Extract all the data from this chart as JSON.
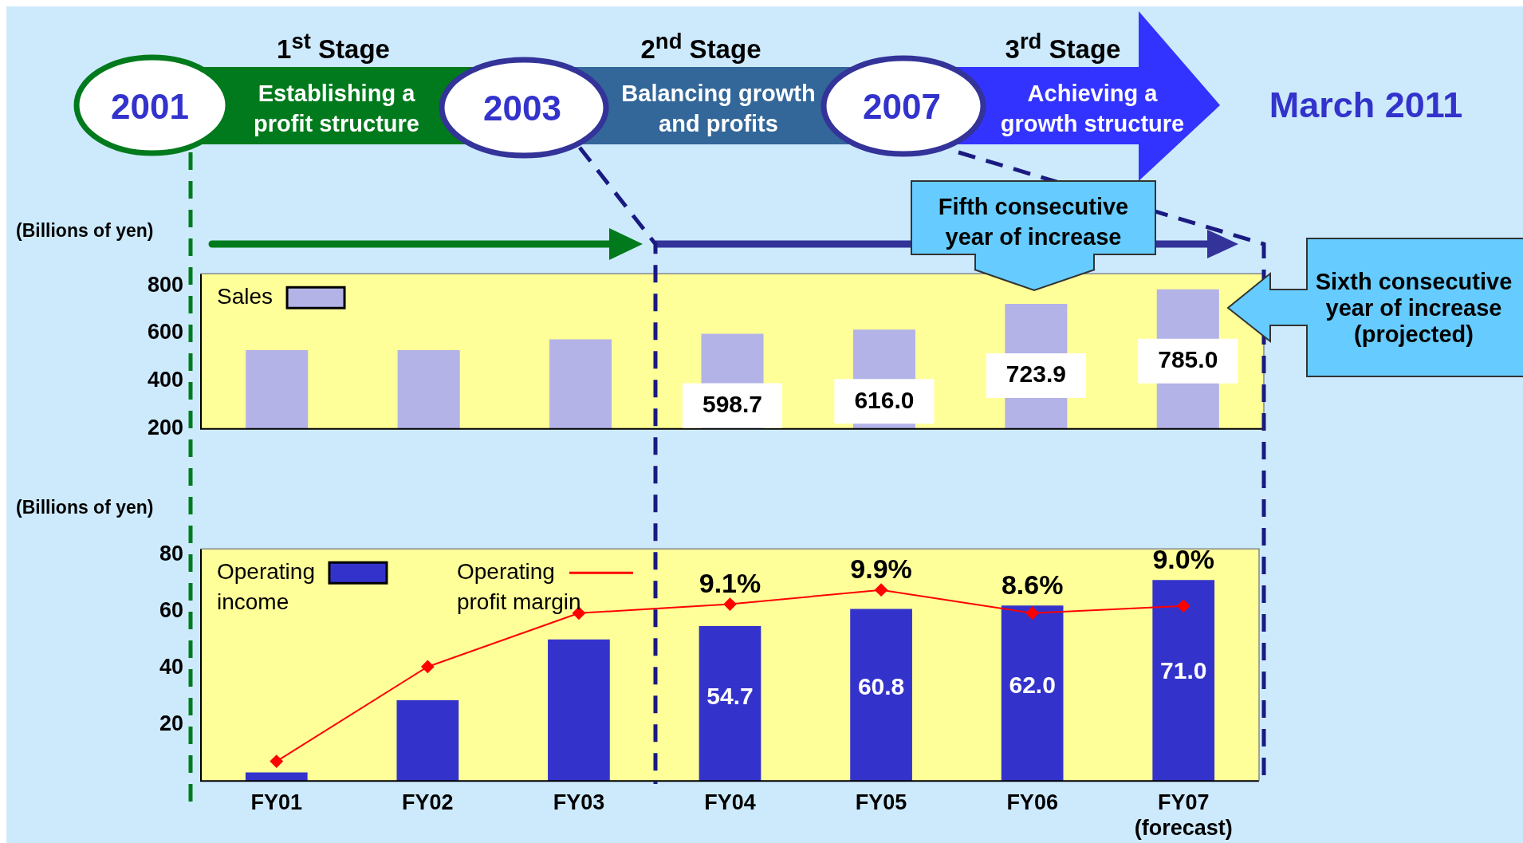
{
  "chart_data": [
    {
      "type": "bar",
      "ylabel": "(Billions of yen)",
      "series": [
        {
          "name": "Sales",
          "color": "#b3b3e8",
          "values": [
            530,
            530,
            575,
            598.7,
            616.0,
            723.9,
            785.0
          ],
          "value_labels": [
            null,
            null,
            null,
            "598.7",
            "616.0",
            "723.9",
            "785.0"
          ]
        }
      ],
      "ylim": [
        200,
        850
      ],
      "yticks": [
        200,
        400,
        600,
        800
      ],
      "tick_labels": "y",
      "legend": "top left",
      "annotations": [
        "1$^{st}$ Stage",
        "2$^{nd}$ Stage",
        "3$^{rd}$ Stage",
        "2001",
        "2003",
        "2007",
        "Establishing a profit structure",
        "Balancing growth and profits",
        "Achieving a growth structure",
        "March 2011",
        "Fifth consecutive year of increase",
        "Sixth consecutive year of increase (projected)"
      ]
    },
    {
      "type": "bar",
      "ylabel": "(Billions of yen)",
      "categories": [
        "FY01",
        "FY02",
        "FY03",
        "FY04",
        "FY05",
        "FY06",
        "FY07 (forecast)"
      ],
      "series": [
        {
          "name": "Operating income",
          "color": "#3333cc",
          "values": [
            3,
            28.5,
            50,
            54.7,
            60.8,
            62.0,
            71.0
          ],
          "value_labels": [
            null,
            null,
            null,
            "54.7",
            "60.8",
            "62.0",
            "71.0"
          ]
        },
        {
          "name": "Operating profit margin",
          "type": "line",
          "axis": "y2",
          "color": "#ff0000",
          "marker": "diamond",
          "values": [
            0.3,
            5.6,
            8.6,
            9.1,
            9.9,
            8.6,
            9.0
          ],
          "value_labels": [
            null,
            null,
            null,
            "9.1%",
            "9.9%",
            "8.6%",
            "9.0%"
          ]
        }
      ],
      "ylim": [
        0,
        82
      ],
      "yticks": [
        20,
        40,
        60,
        80
      ],
      "y2lim": [
        -0.8,
        12.2
      ],
      "legend": "top left"
    }
  ]
}
